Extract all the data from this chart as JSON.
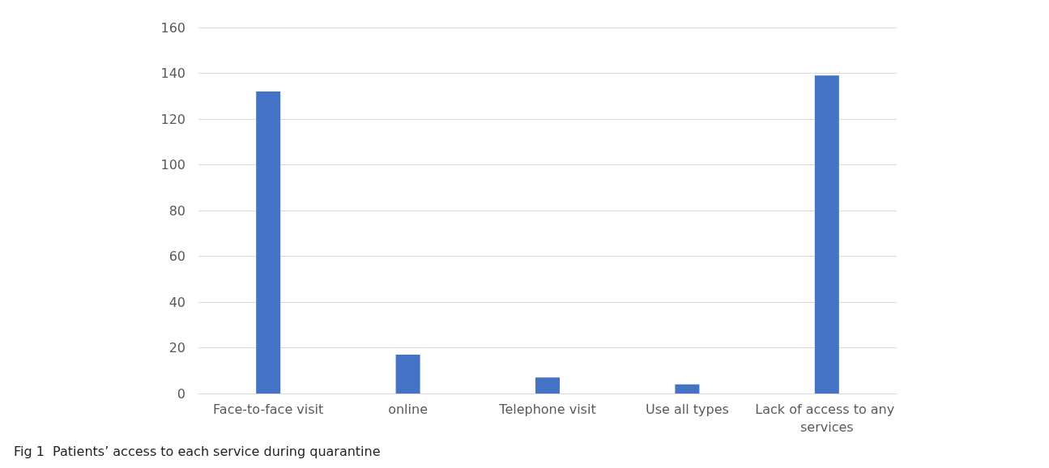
{
  "chart_data": {
    "type": "bar",
    "title": "Fig 1  Patients’ access to each service during quarantine",
    "categories": [
      "Face-to-face visit",
      "online",
      "Telephone visit",
      "Use all types",
      "Lack of access to any services"
    ],
    "values": [
      132,
      17,
      7,
      4,
      139
    ],
    "color": "#4472c4",
    "ylim": [
      0,
      160
    ],
    "yticks": [
      0,
      20,
      40,
      60,
      80,
      100,
      120,
      140,
      160
    ],
    "grid": "y"
  }
}
